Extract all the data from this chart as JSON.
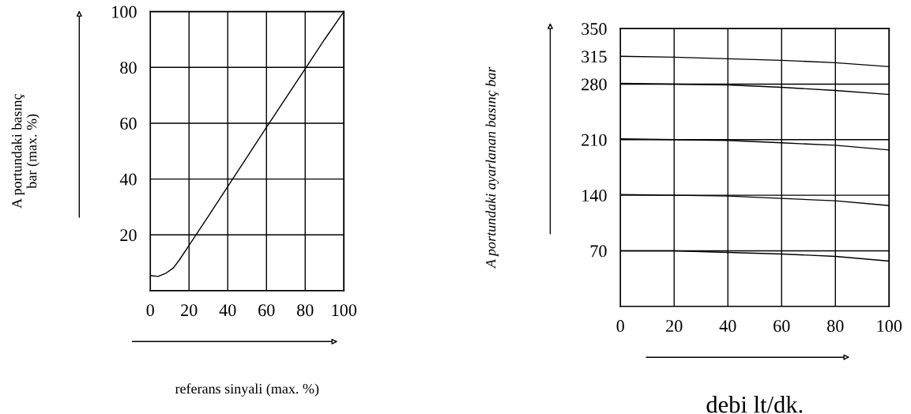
{
  "chart_data": [
    {
      "type": "line",
      "xlabel": "referans sinyali (max. %)",
      "ylabel": "A portundaki basınç\nbar (max. %)",
      "xlim": [
        0,
        100
      ],
      "ylim": [
        0,
        100
      ],
      "xticks": [
        0,
        20,
        40,
        60,
        80,
        100
      ],
      "yticks": [
        {
          "value": 0,
          "label": null
        },
        20,
        40,
        60,
        80,
        100
      ],
      "grid": true,
      "marker": "none",
      "line_style": "solid",
      "series": [
        {
          "color": "#000000",
          "x": [
            0,
            4,
            8,
            12,
            15,
            20,
            30,
            40,
            50,
            60,
            70,
            80,
            90,
            100
          ],
          "values": [
            5.4,
            5.1,
            6.2,
            8.2,
            11,
            16.2,
            26.7,
            37.3,
            47.9,
            58.5,
            69,
            79.5,
            90,
            100
          ]
        }
      ]
    },
    {
      "type": "line",
      "xlabel": "debi lt/dk.",
      "ylabel": "A portundaki ayarlanan basınç bar",
      "xlim": [
        0,
        100
      ],
      "ylim": [
        0,
        350
      ],
      "xticks": [
        0,
        20,
        40,
        60,
        80,
        100
      ],
      "yticks": [
        {
          "value": 0,
          "label": null
        },
        70,
        140,
        210,
        280,
        315,
        350
      ],
      "grid": "x",
      "marker": "none",
      "line_style": "solid",
      "ref_lines": [
        {
          "axis": "y",
          "value": 70
        },
        {
          "axis": "y",
          "value": 140
        },
        {
          "axis": "y",
          "value": 210
        },
        {
          "axis": "y",
          "value": 280
        }
      ],
      "series": [
        {
          "color": "#000000",
          "x": [
            0,
            20,
            40,
            60,
            80,
            100
          ],
          "values": [
            315,
            314,
            312,
            310,
            307,
            302
          ]
        },
        {
          "color": "#000000",
          "x": [
            0,
            20,
            40,
            60,
            80,
            100
          ],
          "values": [
            281,
            280,
            279,
            276,
            272,
            267
          ]
        },
        {
          "color": "#000000",
          "x": [
            0,
            20,
            40,
            60,
            80,
            100
          ],
          "values": [
            211,
            210,
            209,
            206,
            203,
            197
          ]
        },
        {
          "color": "#000000",
          "x": [
            0,
            20,
            40,
            60,
            80,
            100
          ],
          "values": [
            141,
            140,
            139,
            136,
            133,
            127
          ]
        },
        {
          "color": "#000000",
          "x": [
            0,
            20,
            40,
            60,
            80,
            100
          ],
          "values": [
            70,
            70,
            68,
            66,
            63,
            57
          ]
        }
      ]
    }
  ]
}
